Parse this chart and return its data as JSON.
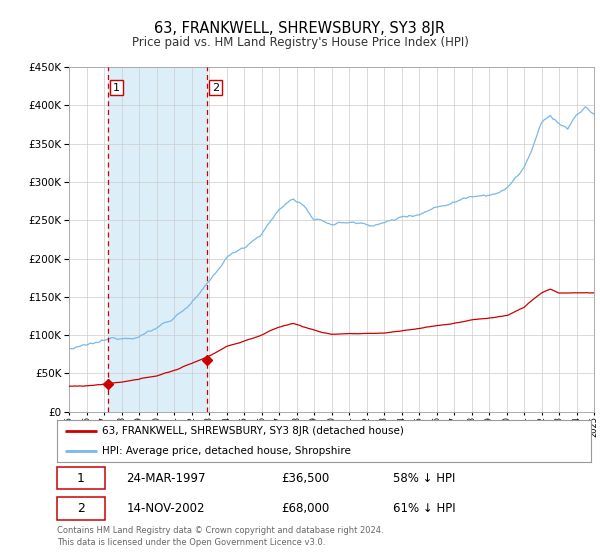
{
  "title": "63, FRANKWELL, SHREWSBURY, SY3 8JR",
  "subtitle": "Price paid vs. HM Land Registry's House Price Index (HPI)",
  "legend_line1": "63, FRANKWELL, SHREWSBURY, SY3 8JR (detached house)",
  "legend_line2": "HPI: Average price, detached house, Shropshire",
  "footer": "Contains HM Land Registry data © Crown copyright and database right 2024.\nThis data is licensed under the Open Government Licence v3.0.",
  "sale1_date": "24-MAR-1997",
  "sale1_price": 36500,
  "sale1_note": "58% ↓ HPI",
  "sale2_date": "14-NOV-2002",
  "sale2_price": 68000,
  "sale2_note": "61% ↓ HPI",
  "hpi_color": "#7ab8e8",
  "price_color": "#cc0000",
  "vline_color": "#cc0000",
  "shade_color": "#dceef8",
  "bg_color": "#ffffff",
  "grid_color": "#cccccc",
  "ylim_min": 0,
  "ylim_max": 450000,
  "x_start_year": 1995,
  "x_end_year": 2025,
  "sale1_x": 1997.23,
  "sale2_x": 2002.87
}
